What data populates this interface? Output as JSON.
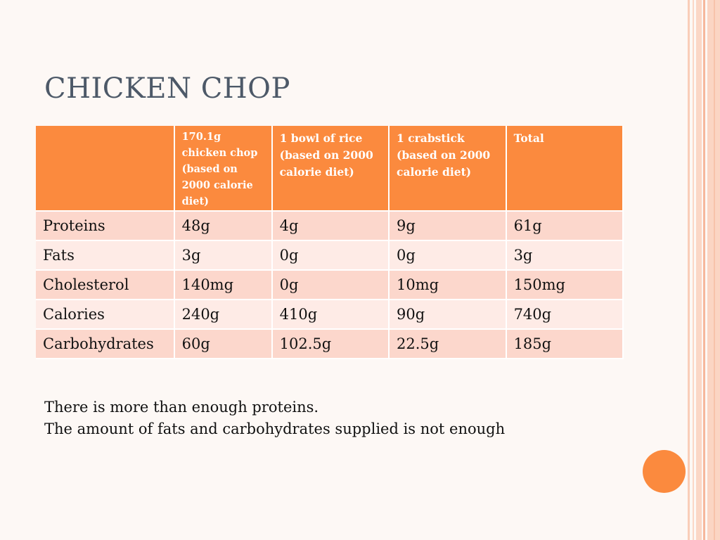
{
  "slide": {
    "title": "CHICKEN CHOP"
  },
  "table": {
    "headers": [
      "",
      "170.1g chicken chop (based on 2000 calorie diet)",
      "1 bowl of rice (based on 2000 calorie diet)",
      "1 crabstick (based on 2000 calorie diet)",
      "Total"
    ],
    "rows": [
      [
        "Proteins",
        "48g",
        "4g",
        "9g",
        "61g"
      ],
      [
        "Fats",
        "3g",
        "0g",
        "0g",
        "3g"
      ],
      [
        "Cholesterol",
        "140mg",
        "0g",
        "10mg",
        "150mg"
      ],
      [
        "Calories",
        "240g",
        "410g",
        "90g",
        "740g"
      ],
      [
        "Carbohydrates",
        "60g",
        "102.5g",
        "22.5g",
        "185g"
      ]
    ]
  },
  "notes": [
    "There is more than enough proteins.",
    "The amount of fats and carbohydrates supplied is not enough"
  ],
  "colors": {
    "accent": "#fb8a3e",
    "row_odd": "#fcd7cc",
    "row_even": "#feebe6",
    "title": "#4d5968"
  }
}
